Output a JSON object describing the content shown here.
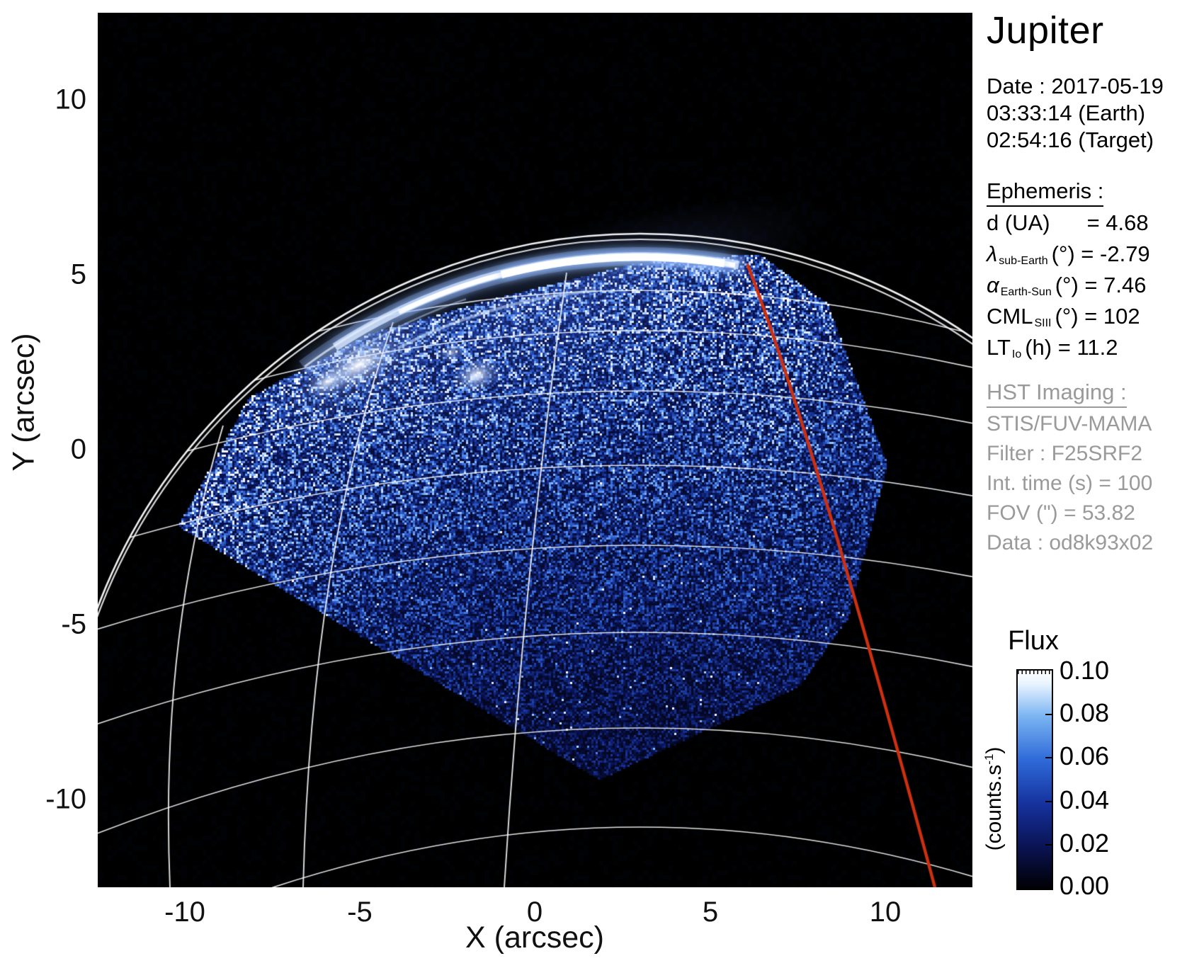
{
  "panel": {
    "title": "Jupiter",
    "date_line": "Date : 2017-05-19",
    "time_earth": "03:33:14 (Earth)",
    "time_target": "02:54:16 (Target)",
    "ephemeris_heading": "Ephemeris :",
    "ephemeris_rows": [
      {
        "pre": "d (UA)",
        "sub": "",
        "post": "= 4.68"
      },
      {
        "pre": "λ",
        "sub": "sub-Earth",
        "post": "(°) = -2.79"
      },
      {
        "pre": "α",
        "sub": "Earth-Sun",
        "post": "(°) = 7.46"
      },
      {
        "pre": "CML",
        "sub": "SIII",
        "post": "(°) = 102"
      },
      {
        "pre": "LT",
        "sub": "Io",
        "post": "(h) = 11.2"
      }
    ],
    "hst_heading": "HST Imaging :",
    "hst_lines": [
      "STIS/FUV-MAMA",
      "Filter : F25SRF2",
      "Int. time (s) = 100",
      "FOV (\") = 53.82",
      "Data : od8k93x02"
    ]
  },
  "axes": {
    "xlabel": "X (arcsec)",
    "ylabel": "Y (arcsec)",
    "xticks": [
      "-10",
      "-5",
      "0",
      "5",
      "10"
    ],
    "yticks": [
      "10",
      "5",
      "0",
      "-5",
      "-10"
    ]
  },
  "colorbar": {
    "title": "Flux",
    "unit_pre": "(counts.s",
    "unit_sup": "-1",
    "unit_post": ")",
    "ticks": [
      "0.10",
      "0.08",
      "0.06",
      "0.04",
      "0.02",
      "0.00"
    ]
  },
  "chart_data": {
    "type": "heatmap",
    "title": "Jupiter",
    "xlabel": "X (arcsec)",
    "ylabel": "Y (arcsec)",
    "xlim": [
      -12.5,
      12.5
    ],
    "ylim": [
      -12.5,
      12.5
    ],
    "xticks": [
      -10,
      -5,
      0,
      5,
      10
    ],
    "yticks": [
      10,
      5,
      0,
      -5,
      -10
    ],
    "colorbar": {
      "label": "Flux",
      "unit": "counts.s-1",
      "min": 0.0,
      "max": 0.1,
      "ticks": [
        0.1,
        0.08,
        0.06,
        0.04,
        0.02,
        0.0
      ]
    },
    "observation": {
      "target": "Jupiter",
      "date": "2017-05-19",
      "time_earth": "03:33:14",
      "time_target": "02:54:16",
      "instrument": "STIS/FUV-MAMA",
      "filter": "F25SRF2",
      "int_time_s": 100,
      "fov_arcsec": 53.82,
      "dataset": "od8k93x02"
    },
    "ephemeris": {
      "d_UA": 4.68,
      "lambda_subEarth_deg": -2.79,
      "alpha_EarthSun_deg": 7.46,
      "CML_SIII_deg": 102,
      "LT_Io_h": 11.2
    },
    "content": {
      "description": "HST far-UV image of Jupiter's northern aurora: bright auroral main oval arc near the limb at top, blue airglow/dayglow noise over the dayside disk inside the square STIS field of view, white planetocentric graticule (latitude circles and meridians, double limb/terminator line) and a red highlighted meridian.",
      "aurora_arc_y_arcsec": 5.3,
      "red_meridian_bottom_x_arcsec": 11.4,
      "colors": {
        "red_meridian": "#cc3010",
        "grid": "#ffffff",
        "field_blue": "#2a52c0",
        "aurora": "#ffffff"
      }
    }
  }
}
